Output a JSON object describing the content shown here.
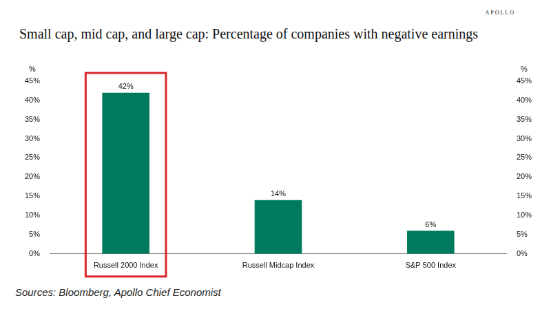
{
  "chart_data": {
    "type": "bar",
    "title": "Small cap, mid cap, and large cap: Percentage of companies with negative earnings",
    "categories": [
      "Russell 2000 Index",
      "Russell Midcap Index",
      "S&P 500 Index"
    ],
    "values": [
      42,
      14,
      6
    ],
    "value_labels": [
      "42%",
      "14%",
      "6%"
    ],
    "color": "#007a5e",
    "ylim": [
      0,
      45
    ],
    "yticks": [
      {
        "value": 0,
        "label": "0%"
      },
      {
        "value": 5,
        "label": "5%"
      },
      {
        "value": 10,
        "label": "10%"
      },
      {
        "value": 15,
        "label": "15%"
      },
      {
        "value": 20,
        "label": "20%"
      },
      {
        "value": 25,
        "label": "25%"
      },
      {
        "value": 30,
        "label": "30%"
      },
      {
        "value": 35,
        "label": "35%"
      },
      {
        "value": 40,
        "label": "40%"
      },
      {
        "value": 45,
        "label": "45%"
      }
    ],
    "y2lim": [
      0,
      45
    ],
    "y2ticks": [
      {
        "value": 0,
        "label": "0%"
      },
      {
        "value": 5,
        "label": "5%"
      },
      {
        "value": 10,
        "label": "10%"
      },
      {
        "value": 15,
        "label": "15%"
      },
      {
        "value": 20,
        "label": "20%"
      },
      {
        "value": 25,
        "label": "25%"
      },
      {
        "value": 30,
        "label": "30%"
      },
      {
        "value": 35,
        "label": "35%"
      },
      {
        "value": 40,
        "label": "40%"
      },
      {
        "value": 45,
        "label": "45%"
      }
    ],
    "y_label": "%",
    "y2_label": "%",
    "data_labels": true,
    "grid": false,
    "source": "Sources: Bloomberg, Apollo Chief Economist",
    "logo": "APOLLO"
  }
}
